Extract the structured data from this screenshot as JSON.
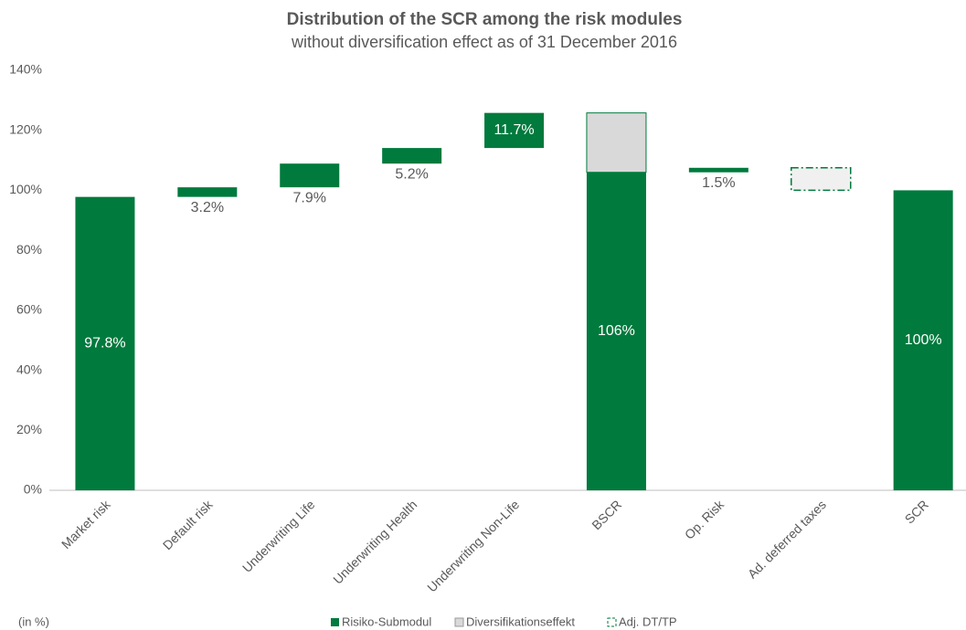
{
  "chart_data": {
    "type": "waterfall",
    "title": "Distribution of the SCR among the risk modules",
    "subtitle": "without diversification effect as of 31 December 2016",
    "note": "(in %)",
    "categories": [
      "Market risk",
      "Default risk",
      "Underwriting Life",
      "Underwriting Health",
      "Underwriting Non-Life",
      "BSCR",
      "Op. Risk",
      "Ad. deferred taxes",
      "SCR"
    ],
    "totals": [
      false,
      false,
      false,
      false,
      false,
      true,
      false,
      false,
      true
    ],
    "series": [
      {
        "name": "Risiko-Submodul",
        "color": "#007a3d",
        "line_style": "solid",
        "values": [
          97.8,
          3.2,
          7.9,
          5.2,
          11.7,
          106,
          1.5,
          null,
          100
        ],
        "value_labels": [
          "97.8%",
          "3.2%",
          "7.9%",
          "5.2%",
          "11.7%",
          "106%",
          "1.5%",
          null,
          "100%"
        ]
      },
      {
        "name": "Diversifikationseffekt",
        "color": "#d9d9d9",
        "line_style": "solid",
        "values": [
          null,
          null,
          null,
          null,
          null,
          -19.8,
          null,
          null,
          null
        ]
      },
      {
        "name": "Adj. DT/TP",
        "color": "#007a3d",
        "line_style": "dashdot",
        "values": [
          null,
          null,
          null,
          null,
          null,
          null,
          null,
          -7.5,
          null
        ]
      }
    ],
    "ylim": [
      0,
      140
    ],
    "yticks": [
      {
        "value": 0,
        "label": "0%"
      },
      {
        "value": 20,
        "label": "20%"
      },
      {
        "value": 40,
        "label": "40%"
      },
      {
        "value": 60,
        "label": "60%"
      },
      {
        "value": 80,
        "label": "80%"
      },
      {
        "value": 100,
        "label": "100%"
      },
      {
        "value": 120,
        "label": "120%"
      },
      {
        "value": 140,
        "label": "140%"
      }
    ],
    "grid": false,
    "legend": "bottom"
  }
}
